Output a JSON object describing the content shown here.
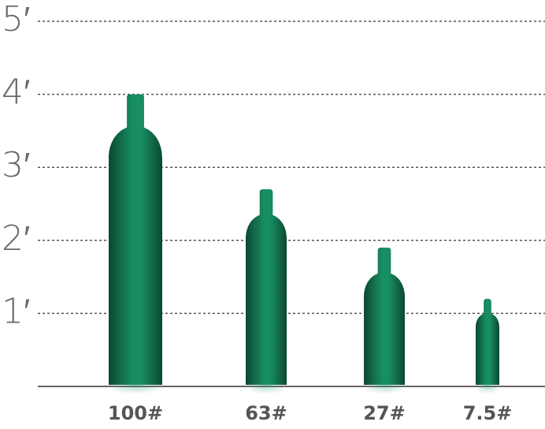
{
  "chart_data": {
    "type": "cylinder",
    "categories": [
      "100#",
      "63#",
      "27#",
      "7.5#"
    ],
    "values": [
      4.0,
      2.7,
      1.9,
      1.2
    ],
    "color": "#178f62",
    "ylim": [
      0,
      5
    ],
    "yticks": [
      {
        "value": 1,
        "label": "1′"
      },
      {
        "value": 2,
        "label": "2′"
      },
      {
        "value": 3,
        "label": "3′"
      },
      {
        "value": 4,
        "label": "4′"
      },
      {
        "value": 5,
        "label": "5′"
      }
    ],
    "grid": true
  }
}
